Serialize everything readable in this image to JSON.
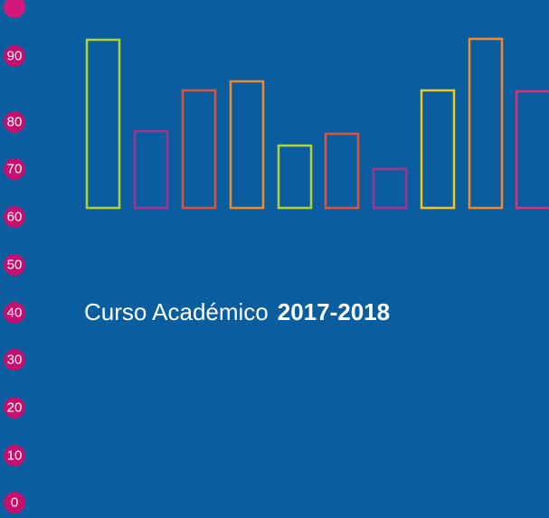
{
  "scale_labels": [
    "90",
    "80",
    "70",
    "60",
    "50",
    "40",
    "30",
    "20",
    "10",
    "0"
  ],
  "heading": {
    "text": "Curso Académico",
    "year": "2017-2018"
  }
}
